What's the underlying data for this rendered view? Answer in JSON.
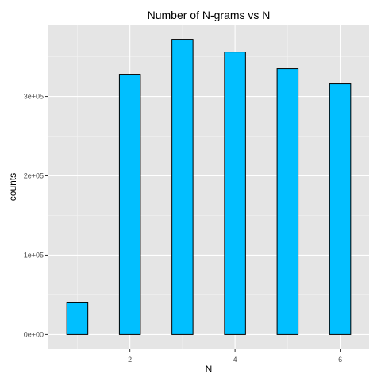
{
  "chart_data": {
    "type": "bar",
    "title": "Number of N-grams vs N",
    "xlabel": "N",
    "ylabel": "counts",
    "x": [
      1,
      2,
      3,
      4,
      5,
      6
    ],
    "values": [
      40000,
      328000,
      372000,
      356000,
      335000,
      316000
    ],
    "x_ticks": [
      2,
      4,
      6
    ],
    "x_tick_labels": [
      "2",
      "4",
      "6"
    ],
    "xlim": [
      0.45,
      6.55
    ],
    "y_ticks": [
      0,
      100000,
      200000,
      300000
    ],
    "y_tick_labels": [
      "0e+00",
      "1e+05",
      "2e+05",
      "3e+05"
    ],
    "ylim": [
      -18600,
      390600
    ],
    "grid": true,
    "legend": "none",
    "colors": {
      "bar_fill": "#00bfff",
      "bar_stroke": "#000000",
      "panel_background": "#e5e5e5",
      "grid_major": "#ffffff",
      "grid_minor": "#f2f2f2"
    }
  }
}
